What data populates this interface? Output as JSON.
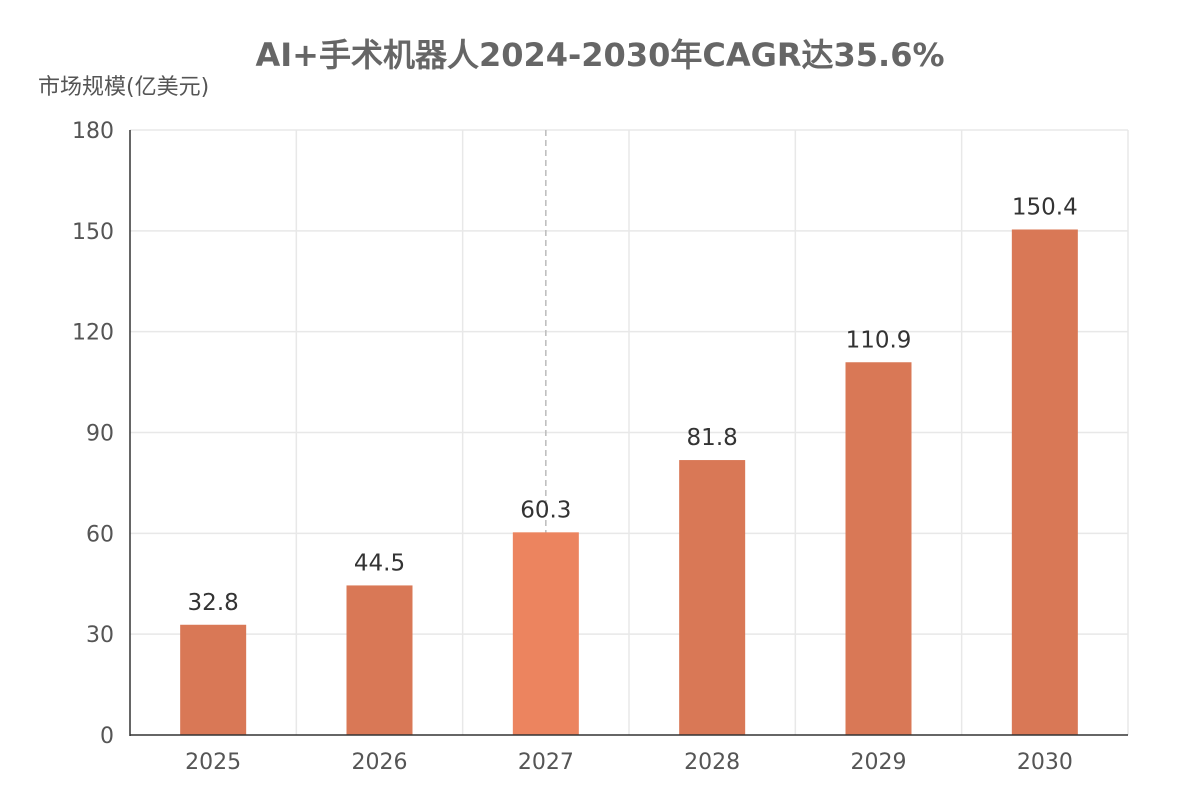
{
  "chart_data": {
    "type": "bar",
    "title": "AI+手术机器人2024-2030年CAGR达35.6%",
    "ylabel": "市场规模(亿美元)",
    "xlabel": "",
    "categories": [
      "2025",
      "2026",
      "2027",
      "2028",
      "2029",
      "2030"
    ],
    "values": [
      32.8,
      44.5,
      60.3,
      81.8,
      110.9,
      150.4
    ],
    "data_labels": [
      "32.8",
      "44.5",
      "60.3",
      "81.8",
      "110.9",
      "150.4"
    ],
    "ylim": [
      0,
      180
    ],
    "yticks": [
      0,
      30,
      60,
      90,
      120,
      150,
      180
    ],
    "ytick_labels": [
      "0",
      "30",
      "60",
      "90",
      "120",
      "150",
      "180"
    ],
    "highlight_category": "2027",
    "grid": true,
    "legend": "none",
    "colors": {
      "bar": "#D97856",
      "bar_highlight": "#EC845F",
      "grid": "#E8E8E8",
      "axis": "#333333",
      "title_text": "#666666",
      "tick_text": "#555555",
      "label_text": "#333333",
      "crosshair": "#BBBBBB"
    }
  }
}
